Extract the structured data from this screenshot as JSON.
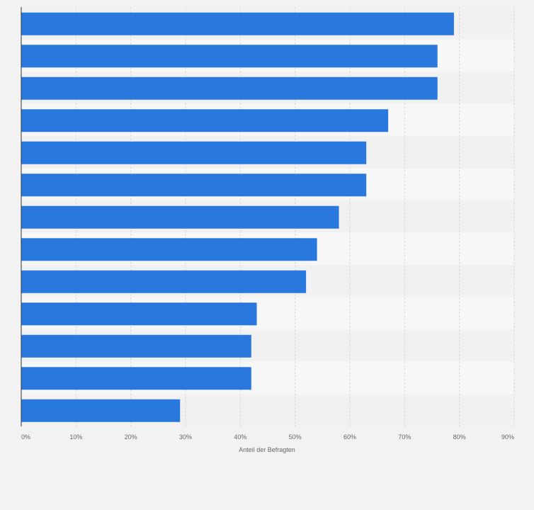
{
  "chart_data": {
    "type": "bar",
    "orientation": "horizontal",
    "title": "",
    "xlabel": "Anteil der Befragten",
    "ylabel": "",
    "xlim": [
      0,
      90
    ],
    "grid": true,
    "categories": [
      "",
      "",
      "",
      "",
      "",
      "",
      "",
      "",
      "",
      "",
      "",
      "",
      ""
    ],
    "values": [
      79,
      76,
      76,
      67,
      63,
      63,
      58,
      54,
      52,
      43,
      42,
      42,
      29
    ],
    "x_ticks": [
      0,
      10,
      20,
      30,
      40,
      50,
      60,
      70,
      80,
      90
    ],
    "x_tick_labels": [
      "0%",
      "10%",
      "20%",
      "30%",
      "40%",
      "50%",
      "60%",
      "70%",
      "80%",
      "90%"
    ]
  },
  "colors": {
    "bar": "#2878de",
    "background": "#f2f2f3",
    "band_light": "#f7f7f8",
    "band_dark": "#f1f1f2",
    "grid": "#d9d9d9",
    "axis": "#333333"
  }
}
